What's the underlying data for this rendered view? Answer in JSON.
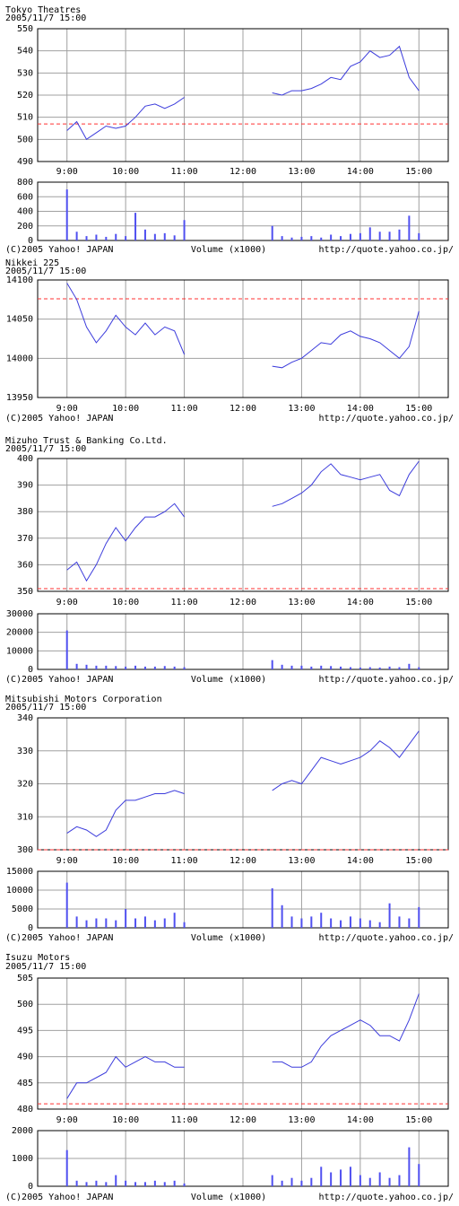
{
  "chart_data": [
    {
      "type": "line",
      "title": "Tokyo Theatres",
      "subtitle": "2005/11/7 15:00",
      "x": [
        540,
        550,
        560,
        570,
        580,
        590,
        600,
        610,
        620,
        630,
        640,
        650,
        660,
        705,
        750,
        760,
        770,
        780,
        790,
        800,
        810,
        820,
        830,
        840,
        850,
        860,
        870,
        880,
        890,
        900
      ],
      "xlim": [
        510,
        930
      ],
      "xticks": [
        {
          "value": 540,
          "label": "9:00"
        },
        {
          "value": 600,
          "label": "10:00"
        },
        {
          "value": 660,
          "label": "11:00"
        },
        {
          "value": 720,
          "label": "12:00"
        },
        {
          "value": 780,
          "label": "13:00"
        },
        {
          "value": 840,
          "label": "14:00"
        },
        {
          "value": 900,
          "label": "15:00"
        }
      ],
      "series": [
        {
          "color": "#3c3cdc",
          "values": [
            504,
            508,
            500,
            503,
            506,
            505,
            506,
            510,
            515,
            516,
            514,
            516,
            519,
            null,
            521,
            520,
            522,
            522,
            523,
            525,
            528,
            527,
            533,
            535,
            540,
            537,
            538,
            542,
            528,
            522
          ]
        }
      ],
      "ylim": [
        490,
        550
      ],
      "yticks": [
        490,
        500,
        510,
        520,
        530,
        540,
        550
      ],
      "reference_line": 507,
      "reference_color": "#ff3030",
      "grid": true,
      "volume": {
        "label": "Volume (x1000)",
        "color": "#5050f0",
        "values": [
          700,
          120,
          60,
          80,
          50,
          90,
          60,
          380,
          150,
          90,
          100,
          70,
          280,
          null,
          200,
          60,
          40,
          50,
          60,
          40,
          80,
          60,
          90,
          100,
          180,
          120,
          120,
          150,
          340,
          100
        ],
        "ylim": [
          0,
          800
        ],
        "yticks": [
          0,
          200,
          400,
          600,
          800
        ]
      },
      "copyright": "(C)2005 Yahoo! JAPAN",
      "source": "http://quote.yahoo.co.jp/"
    },
    {
      "type": "line",
      "title": "Nikkei 225",
      "subtitle": "2005/11/7 15:00",
      "x": [
        540,
        550,
        560,
        570,
        580,
        590,
        600,
        610,
        620,
        630,
        640,
        650,
        660,
        705,
        750,
        760,
        770,
        780,
        790,
        800,
        810,
        820,
        830,
        840,
        850,
        860,
        870,
        880,
        890,
        900
      ],
      "xlim": [
        510,
        930
      ],
      "xticks": [
        {
          "value": 540,
          "label": "9:00"
        },
        {
          "value": 600,
          "label": "10:00"
        },
        {
          "value": 660,
          "label": "11:00"
        },
        {
          "value": 720,
          "label": "12:00"
        },
        {
          "value": 780,
          "label": "13:00"
        },
        {
          "value": 840,
          "label": "14:00"
        },
        {
          "value": 900,
          "label": "15:00"
        }
      ],
      "series": [
        {
          "color": "#3c3cdc",
          "values": [
            14096,
            14075,
            14040,
            14020,
            14035,
            14055,
            14040,
            14030,
            14045,
            14030,
            14040,
            14035,
            14005,
            null,
            13990,
            13988,
            13995,
            14000,
            14010,
            14020,
            14018,
            14030,
            14035,
            14028,
            14025,
            14020,
            14010,
            14000,
            14015,
            14060
          ]
        }
      ],
      "ylim": [
        13950,
        14100
      ],
      "yticks": [
        13950,
        14000,
        14050,
        14100
      ],
      "reference_line": 14076,
      "reference_color": "#ff3030",
      "grid": true,
      "copyright": "(C)2005 Yahoo! JAPAN",
      "source": "http://quote.yahoo.co.jp/"
    },
    {
      "type": "line",
      "title": "Mizuho Trust & Banking Co.Ltd.",
      "subtitle": "2005/11/7 15:00",
      "x": [
        540,
        550,
        560,
        570,
        580,
        590,
        600,
        610,
        620,
        630,
        640,
        650,
        660,
        705,
        750,
        760,
        770,
        780,
        790,
        800,
        810,
        820,
        830,
        840,
        850,
        860,
        870,
        880,
        890,
        900
      ],
      "xlim": [
        510,
        930
      ],
      "xticks": [
        {
          "value": 540,
          "label": "9:00"
        },
        {
          "value": 600,
          "label": "10:00"
        },
        {
          "value": 660,
          "label": "11:00"
        },
        {
          "value": 720,
          "label": "12:00"
        },
        {
          "value": 780,
          "label": "13:00"
        },
        {
          "value": 840,
          "label": "14:00"
        },
        {
          "value": 900,
          "label": "15:00"
        }
      ],
      "series": [
        {
          "color": "#3c3cdc",
          "values": [
            358,
            361,
            354,
            360,
            368,
            374,
            369,
            374,
            378,
            378,
            380,
            383,
            378,
            null,
            382,
            383,
            385,
            387,
            390,
            395,
            398,
            394,
            393,
            392,
            393,
            394,
            388,
            386,
            394,
            399
          ]
        }
      ],
      "ylim": [
        350,
        400
      ],
      "yticks": [
        350,
        360,
        370,
        380,
        390,
        400
      ],
      "reference_line": 351,
      "reference_color": "#ff3030",
      "grid": true,
      "volume": {
        "label": "Volume (x1000)",
        "color": "#5050f0",
        "values": [
          21000,
          3000,
          2500,
          2000,
          2000,
          1800,
          1500,
          2000,
          1500,
          1500,
          1800,
          1500,
          1200,
          null,
          5000,
          2500,
          2000,
          2000,
          1500,
          2000,
          1800,
          1500,
          1200,
          1000,
          1200,
          1000,
          1500,
          1200,
          3000,
          1200
        ],
        "ylim": [
          0,
          30000
        ],
        "yticks": [
          0,
          10000,
          20000,
          30000
        ]
      },
      "copyright": "(C)2005 Yahoo! JAPAN",
      "source": "http://quote.yahoo.co.jp/"
    },
    {
      "type": "line",
      "title": "Mitsubishi Motors Corporation",
      "subtitle": "2005/11/7 15:00",
      "x": [
        540,
        550,
        560,
        570,
        580,
        590,
        600,
        610,
        620,
        630,
        640,
        650,
        660,
        705,
        750,
        760,
        770,
        780,
        790,
        800,
        810,
        820,
        830,
        840,
        850,
        860,
        870,
        880,
        890,
        900
      ],
      "xlim": [
        510,
        930
      ],
      "xticks": [
        {
          "value": 540,
          "label": "9:00"
        },
        {
          "value": 600,
          "label": "10:00"
        },
        {
          "value": 660,
          "label": "11:00"
        },
        {
          "value": 720,
          "label": "12:00"
        },
        {
          "value": 780,
          "label": "13:00"
        },
        {
          "value": 840,
          "label": "14:00"
        },
        {
          "value": 900,
          "label": "15:00"
        }
      ],
      "series": [
        {
          "color": "#3c3cdc",
          "values": [
            305,
            307,
            306,
            304,
            306,
            312,
            315,
            315,
            316,
            317,
            317,
            318,
            317,
            null,
            318,
            320,
            321,
            320,
            324,
            328,
            327,
            326,
            327,
            328,
            330,
            333,
            331,
            328,
            332,
            336
          ]
        }
      ],
      "ylim": [
        300,
        340
      ],
      "yticks": [
        300,
        310,
        320,
        330,
        340
      ],
      "reference_line": 300,
      "reference_color": "#ff3030",
      "grid": true,
      "volume": {
        "label": "Volume (x1000)",
        "color": "#5050f0",
        "values": [
          12000,
          3000,
          2000,
          2500,
          2500,
          2000,
          5000,
          2500,
          3000,
          2000,
          2500,
          4000,
          1500,
          null,
          10500,
          6000,
          3000,
          2500,
          3000,
          4000,
          2500,
          2000,
          3000,
          2500,
          2000,
          1500,
          6500,
          3000,
          2500,
          5500
        ],
        "ylim": [
          0,
          15000
        ],
        "yticks": [
          0,
          5000,
          10000,
          15000
        ]
      },
      "copyright": "(C)2005 Yahoo! JAPAN",
      "source": "http://quote.yahoo.co.jp/"
    },
    {
      "type": "line",
      "title": "Isuzu Motors",
      "subtitle": "2005/11/7 15:00",
      "x": [
        540,
        550,
        560,
        570,
        580,
        590,
        600,
        610,
        620,
        630,
        640,
        650,
        660,
        705,
        750,
        760,
        770,
        780,
        790,
        800,
        810,
        820,
        830,
        840,
        850,
        860,
        870,
        880,
        890,
        900
      ],
      "xlim": [
        510,
        930
      ],
      "xticks": [
        {
          "value": 540,
          "label": "9:00"
        },
        {
          "value": 600,
          "label": "10:00"
        },
        {
          "value": 660,
          "label": "11:00"
        },
        {
          "value": 720,
          "label": "12:00"
        },
        {
          "value": 780,
          "label": "13:00"
        },
        {
          "value": 840,
          "label": "14:00"
        },
        {
          "value": 900,
          "label": "15:00"
        }
      ],
      "series": [
        {
          "color": "#3c3cdc",
          "values": [
            482,
            485,
            485,
            486,
            487,
            490,
            488,
            489,
            490,
            489,
            489,
            488,
            488,
            null,
            489,
            489,
            488,
            488,
            489,
            492,
            494,
            495,
            496,
            497,
            496,
            494,
            494,
            493,
            497,
            502
          ]
        }
      ],
      "ylim": [
        480,
        505
      ],
      "yticks": [
        480,
        485,
        490,
        495,
        500,
        505
      ],
      "reference_line": 481,
      "reference_color": "#ff3030",
      "grid": true,
      "volume": {
        "label": "Volume (x1000)",
        "color": "#5050f0",
        "values": [
          1300,
          200,
          150,
          200,
          150,
          400,
          200,
          150,
          150,
          200,
          150,
          200,
          100,
          null,
          400,
          200,
          300,
          200,
          300,
          700,
          500,
          600,
          700,
          400,
          300,
          500,
          300,
          400,
          1400,
          800
        ],
        "ylim": [
          0,
          2000
        ],
        "yticks": [
          0,
          1000,
          2000
        ]
      },
      "copyright": "(C)2005 Yahoo! JAPAN",
      "source": "http://quote.yahoo.co.jp/"
    }
  ]
}
